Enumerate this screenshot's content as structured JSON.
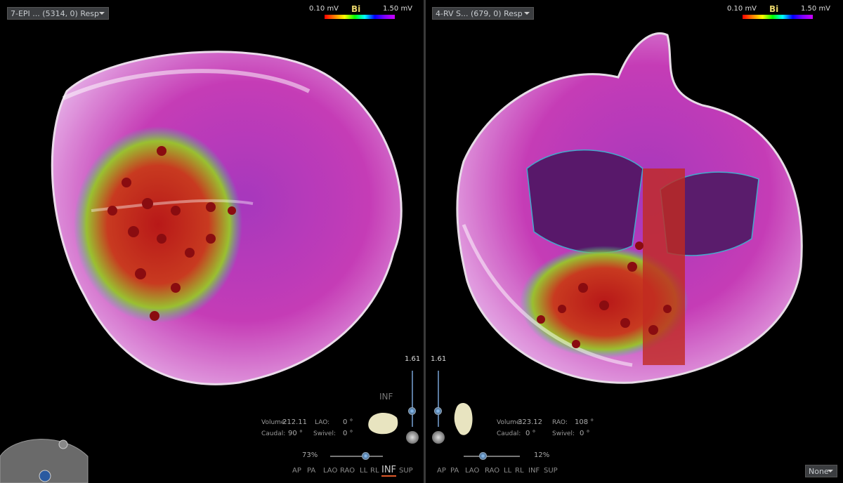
{
  "panels": [
    {
      "map_selector": "7-EPI ... (5314, 0) Resp",
      "legend": {
        "min": "0.10 mV",
        "label": "Bi",
        "max": "1.50 mV"
      },
      "zoom_scale": "1.61",
      "view_label": "INF",
      "info": [
        {
          "label": "Volume:",
          "value": "212.11"
        },
        {
          "label": "LAO:",
          "value": "0 °"
        },
        {
          "label": "Caudal:",
          "value": "90 °"
        },
        {
          "label": "Swivel:",
          "value": "0 °"
        }
      ],
      "zoom_percent": "73%",
      "views": [
        "AP",
        "PA",
        "LAO",
        "RAO",
        "LL",
        "RL",
        "INF",
        "SUP"
      ],
      "selected_view": "INF"
    },
    {
      "map_selector": "4-RV S... (679, 0) Resp",
      "legend": {
        "min": "0.10 mV",
        "label": "Bi",
        "max": "1.50 mV"
      },
      "zoom_scale": "1.61",
      "info": [
        {
          "label": "Volume:",
          "value": "323.12"
        },
        {
          "label": "RAO:",
          "value": "108 °"
        },
        {
          "label": "Caudal:",
          "value": "0 °"
        },
        {
          "label": "Swivel:",
          "value": "0 °"
        }
      ],
      "zoom_percent": "12%",
      "views": [
        "AP",
        "PA",
        "LAO",
        "RAO",
        "LL",
        "RL",
        "INF",
        "SUP"
      ]
    }
  ],
  "display_mode": "None"
}
